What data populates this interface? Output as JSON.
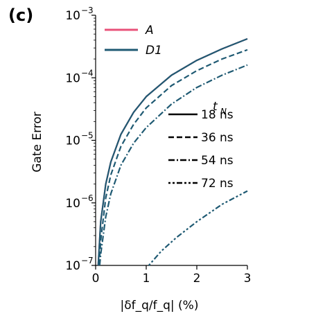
{
  "panel_label": "(c)",
  "chart_data": {
    "type": "line",
    "xlabel": "|δf_q/f_q| (%)",
    "ylabel": "Gate Error",
    "xlim": [
      0,
      3
    ],
    "ylim": [
      1e-07,
      0.001
    ],
    "yscale": "log",
    "x_ticks": [
      "0",
      "1",
      "2",
      "3"
    ],
    "y_ticks": [
      {
        "base": "10",
        "exp": "−3"
      },
      {
        "base": "10",
        "exp": "−4"
      },
      {
        "base": "10",
        "exp": "−5"
      },
      {
        "base": "10",
        "exp": "−6"
      },
      {
        "base": "10",
        "exp": "−7"
      }
    ],
    "grid": false,
    "legend_pulses": {
      "placement": "top-left",
      "entries": [
        {
          "label": "A",
          "color": "#e8527a"
        },
        {
          "label": "D1",
          "color": "#1f5a73"
        }
      ]
    },
    "legend_durations": {
      "title": "t_N",
      "placement": "center-right",
      "entries": [
        {
          "label": "18 ns",
          "style": "solid"
        },
        {
          "label": "36 ns",
          "style": "dashed"
        },
        {
          "label": "54 ns",
          "style": "dashdot"
        },
        {
          "label": "72 ns",
          "style": "dotdash"
        }
      ]
    },
    "series": [
      {
        "pulse": "A",
        "duration": "18 ns",
        "color": "#e8527a",
        "style": "solid",
        "x": [
          0.05,
          0.1,
          0.2,
          0.3,
          0.5,
          0.75,
          1.0,
          1.5,
          2.0,
          2.5,
          3.0
        ],
        "y": [
          1e-07,
          5e-07,
          2e-06,
          4.5e-06,
          1.25e-05,
          2.8e-05,
          5e-05,
          0.00011,
          0.00019,
          0.00029,
          0.00042
        ]
      },
      {
        "pulse": "D1",
        "duration": "18 ns",
        "color": "#1f5a73",
        "style": "solid",
        "x": [
          0.05,
          0.1,
          0.2,
          0.3,
          0.5,
          0.75,
          1.0,
          1.5,
          2.0,
          2.5,
          3.0
        ],
        "y": [
          1e-07,
          5e-07,
          2e-06,
          4.5e-06,
          1.25e-05,
          2.8e-05,
          5e-05,
          0.00011,
          0.00019,
          0.00029,
          0.00042
        ]
      },
      {
        "pulse": "D1",
        "duration": "36 ns",
        "color": "#1f5a73",
        "style": "dashed",
        "x": [
          0.07,
          0.1,
          0.2,
          0.3,
          0.5,
          0.75,
          1.0,
          1.5,
          2.0,
          2.5,
          3.0
        ],
        "y": [
          1e-07,
          2.5e-07,
          1.2e-06,
          2.8e-06,
          8e-06,
          1.8e-05,
          3.3e-05,
          7.5e-05,
          0.00013,
          0.0002,
          0.00028
        ]
      },
      {
        "pulse": "D1",
        "duration": "54 ns",
        "color": "#1f5a73",
        "style": "dashdot",
        "x": [
          0.08,
          0.1,
          0.2,
          0.3,
          0.5,
          0.75,
          1.0,
          1.5,
          2.0,
          2.5,
          3.0
        ],
        "y": [
          1e-07,
          1.5e-07,
          6e-07,
          1.4e-06,
          4e-06,
          9e-06,
          1.6e-05,
          3.8e-05,
          7e-05,
          0.00011,
          0.00016
        ]
      },
      {
        "pulse": "D1",
        "duration": "72 ns",
        "color": "#1f5a73",
        "style": "dotdash",
        "x": [
          1.05,
          1.3,
          1.6,
          2.0,
          2.5,
          3.0
        ],
        "y": [
          1e-07,
          1.7e-07,
          2.8e-07,
          5e-07,
          9.5e-07,
          1.55e-06
        ]
      }
    ]
  }
}
